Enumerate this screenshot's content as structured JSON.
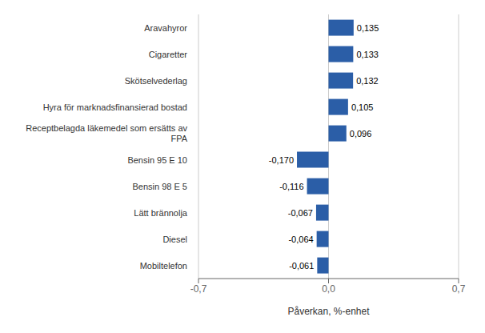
{
  "chart_data": {
    "type": "bar",
    "orientation": "horizontal",
    "categories": [
      "Mobiltelefon",
      "Diesel",
      "Lätt brännolja",
      "Bensin 98 E 5",
      "Bensin 95 E 10",
      "Receptbelagda läkemedel som ersätts av\nFPA",
      "Hyra för marknadsfinansierad bostad",
      "Skötselvederlag",
      "Cigaretter",
      "Aravahyror"
    ],
    "values": [
      -0.061,
      -0.064,
      -0.067,
      -0.116,
      -0.17,
      0.096,
      0.105,
      0.132,
      0.133,
      0.135
    ],
    "value_labels": [
      "-0,061",
      "-0,064",
      "-0,067",
      "-0,116",
      "-0,170",
      "0,096",
      "0,105",
      "0,132",
      "0,133",
      "0,135"
    ],
    "data_labels": true,
    "color": "#2B5EA7",
    "xlabel": "Påverkan, %-enhet",
    "xlim": [
      -0.7,
      0.7
    ],
    "xticks": [
      {
        "value": -0.7,
        "label": "-0,7"
      },
      {
        "value": 0.0,
        "label": "0,0"
      },
      {
        "value": 0.7,
        "label": "0,7"
      }
    ],
    "grid": true
  }
}
